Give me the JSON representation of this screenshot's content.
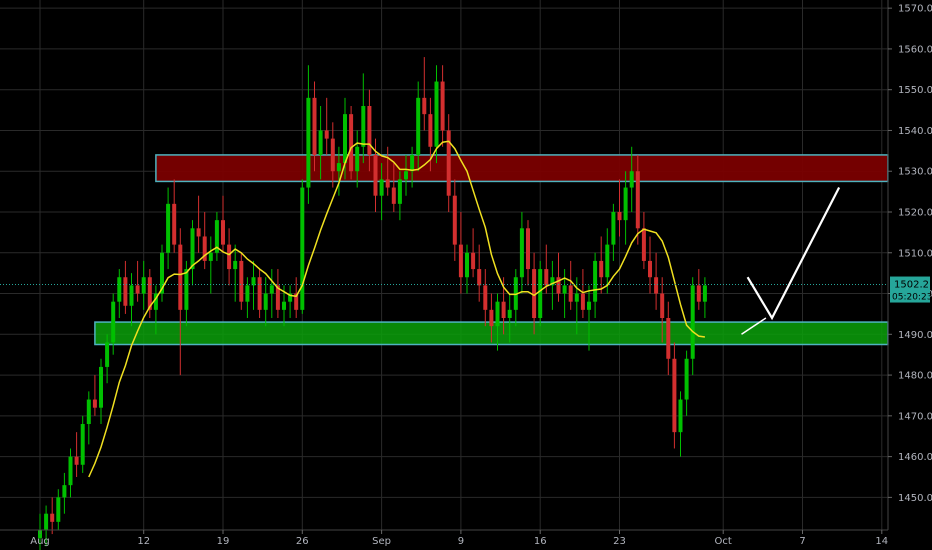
{
  "chart_data": {
    "type": "candlestick",
    "background": "#000000",
    "y_axis": {
      "position": "right",
      "ylim": [
        1442,
        1572
      ],
      "ticks": [
        1450,
        1460,
        1470,
        1480,
        1490,
        1500,
        1510,
        1520,
        1530,
        1540,
        1550,
        1560,
        1570
      ],
      "tick_labels": [
        "1450.00",
        "1460.00",
        "1470.00",
        "1480.00",
        "1490.00",
        "1500.00",
        "1510.00",
        "1520.00",
        "1530.00",
        "1540.00",
        "1550.00",
        "1560.00",
        "1570.00"
      ]
    },
    "x_axis": {
      "tick_labels": [
        "Aug",
        "12",
        "19",
        "26",
        "Sep",
        "9",
        "16",
        "23",
        "Oct",
        "7",
        "14"
      ],
      "tick_bar_index": [
        0,
        17,
        30,
        43,
        56,
        69,
        82,
        95,
        112,
        125,
        138
      ]
    },
    "last_price": {
      "value": "1502.21",
      "countdown": "05:20:23",
      "color": "#26a69a"
    },
    "colors": {
      "up": "#00c000",
      "down": "#d32f2f",
      "ma": "#f0e020",
      "grid": "#2a2a2a",
      "resistance_fill": "#7a0000",
      "support_fill": "#0aa00a",
      "zone_border": "#4fb3bf",
      "projection": "#ffffff"
    },
    "zones": [
      {
        "name": "resistance",
        "y_top": 1534,
        "y_bottom": 1527.5,
        "x_start_bar": 19,
        "x_end_bar": 139
      },
      {
        "name": "support",
        "y_top": 1493,
        "y_bottom": 1487.5,
        "x_start_bar": 9,
        "x_end_bar": 139
      }
    ],
    "projection": [
      {
        "bar": 116,
        "y": 1504
      },
      {
        "bar": 120,
        "y": 1494
      },
      {
        "bar": 131,
        "y": 1526
      }
    ],
    "projection_secondary": [
      {
        "bar": 115,
        "y": 1490
      },
      {
        "bar": 119,
        "y": 1494
      }
    ],
    "ohlc": [
      [
        1440,
        1446,
        1436,
        1442
      ],
      [
        1442,
        1448,
        1438,
        1446
      ],
      [
        1446,
        1450,
        1441,
        1444
      ],
      [
        1444,
        1452,
        1442,
        1450
      ],
      [
        1450,
        1456,
        1446,
        1453
      ],
      [
        1453,
        1462,
        1450,
        1460
      ],
      [
        1460,
        1466,
        1455,
        1458
      ],
      [
        1458,
        1470,
        1456,
        1468
      ],
      [
        1468,
        1476,
        1463,
        1474
      ],
      [
        1474,
        1480,
        1470,
        1472
      ],
      [
        1472,
        1484,
        1468,
        1482
      ],
      [
        1482,
        1490,
        1478,
        1488
      ],
      [
        1488,
        1500,
        1485,
        1498
      ],
      [
        1498,
        1506,
        1494,
        1504
      ],
      [
        1504,
        1508,
        1495,
        1497
      ],
      [
        1497,
        1505,
        1492,
        1502
      ],
      [
        1502,
        1508,
        1498,
        1500
      ],
      [
        1500,
        1508,
        1496,
        1504
      ],
      [
        1504,
        1506,
        1494,
        1496
      ],
      [
        1496,
        1502,
        1490,
        1500
      ],
      [
        1500,
        1512,
        1498,
        1510
      ],
      [
        1510,
        1526,
        1506,
        1522
      ],
      [
        1522,
        1528,
        1510,
        1512
      ],
      [
        1512,
        1516,
        1480,
        1496
      ],
      [
        1496,
        1508,
        1492,
        1506
      ],
      [
        1506,
        1518,
        1502,
        1516
      ],
      [
        1516,
        1524,
        1510,
        1514
      ],
      [
        1514,
        1520,
        1506,
        1508
      ],
      [
        1508,
        1514,
        1500,
        1510
      ],
      [
        1510,
        1520,
        1508,
        1518
      ],
      [
        1518,
        1524,
        1510,
        1512
      ],
      [
        1512,
        1516,
        1502,
        1506
      ],
      [
        1506,
        1512,
        1498,
        1508
      ],
      [
        1508,
        1510,
        1496,
        1498
      ],
      [
        1498,
        1504,
        1494,
        1502
      ],
      [
        1502,
        1508,
        1496,
        1504
      ],
      [
        1504,
        1506,
        1494,
        1496
      ],
      [
        1496,
        1504,
        1492,
        1500
      ],
      [
        1500,
        1506,
        1494,
        1502
      ],
      [
        1502,
        1506,
        1494,
        1496
      ],
      [
        1496,
        1502,
        1492,
        1498
      ],
      [
        1498,
        1502,
        1494,
        1500
      ],
      [
        1500,
        1504,
        1494,
        1496
      ],
      [
        1496,
        1528,
        1495,
        1526
      ],
      [
        1526,
        1556,
        1522,
        1548
      ],
      [
        1548,
        1552,
        1530,
        1534
      ],
      [
        1534,
        1546,
        1528,
        1540
      ],
      [
        1540,
        1548,
        1534,
        1538
      ],
      [
        1538,
        1542,
        1526,
        1530
      ],
      [
        1530,
        1536,
        1524,
        1532
      ],
      [
        1532,
        1548,
        1528,
        1544
      ],
      [
        1544,
        1546,
        1528,
        1530
      ],
      [
        1530,
        1540,
        1526,
        1536
      ],
      [
        1536,
        1554,
        1532,
        1546
      ],
      [
        1546,
        1550,
        1530,
        1534
      ],
      [
        1534,
        1538,
        1520,
        1524
      ],
      [
        1524,
        1532,
        1518,
        1528
      ],
      [
        1528,
        1536,
        1524,
        1526
      ],
      [
        1526,
        1532,
        1520,
        1522
      ],
      [
        1522,
        1530,
        1518,
        1528
      ],
      [
        1528,
        1534,
        1524,
        1530
      ],
      [
        1530,
        1536,
        1526,
        1534
      ],
      [
        1534,
        1552,
        1530,
        1548
      ],
      [
        1548,
        1558,
        1540,
        1544
      ],
      [
        1544,
        1548,
        1530,
        1536
      ],
      [
        1536,
        1556,
        1532,
        1552
      ],
      [
        1552,
        1556,
        1536,
        1540
      ],
      [
        1540,
        1544,
        1520,
        1524
      ],
      [
        1524,
        1528,
        1508,
        1512
      ],
      [
        1512,
        1520,
        1500,
        1504
      ],
      [
        1504,
        1512,
        1500,
        1510
      ],
      [
        1510,
        1516,
        1504,
        1506
      ],
      [
        1506,
        1512,
        1498,
        1502
      ],
      [
        1502,
        1506,
        1492,
        1496
      ],
      [
        1496,
        1500,
        1488,
        1492
      ],
      [
        1492,
        1500,
        1486,
        1498
      ],
      [
        1498,
        1504,
        1490,
        1494
      ],
      [
        1494,
        1500,
        1488,
        1496
      ],
      [
        1496,
        1506,
        1492,
        1504
      ],
      [
        1504,
        1520,
        1500,
        1516
      ],
      [
        1516,
        1518,
        1502,
        1506
      ],
      [
        1506,
        1510,
        1490,
        1494
      ],
      [
        1494,
        1508,
        1492,
        1506
      ],
      [
        1506,
        1512,
        1500,
        1502
      ],
      [
        1502,
        1508,
        1496,
        1504
      ],
      [
        1504,
        1510,
        1498,
        1500
      ],
      [
        1500,
        1506,
        1494,
        1502
      ],
      [
        1502,
        1508,
        1496,
        1498
      ],
      [
        1498,
        1504,
        1490,
        1500
      ],
      [
        1500,
        1506,
        1494,
        1496
      ],
      [
        1496,
        1502,
        1486,
        1498
      ],
      [
        1498,
        1510,
        1494,
        1508
      ],
      [
        1508,
        1514,
        1500,
        1504
      ],
      [
        1504,
        1516,
        1500,
        1512
      ],
      [
        1512,
        1522,
        1508,
        1520
      ],
      [
        1520,
        1528,
        1514,
        1518
      ],
      [
        1518,
        1530,
        1512,
        1526
      ],
      [
        1526,
        1536,
        1520,
        1530
      ],
      [
        1530,
        1534,
        1512,
        1516
      ],
      [
        1516,
        1520,
        1506,
        1508
      ],
      [
        1508,
        1514,
        1500,
        1504
      ],
      [
        1504,
        1510,
        1496,
        1500
      ],
      [
        1500,
        1504,
        1488,
        1494
      ],
      [
        1494,
        1498,
        1480,
        1484
      ],
      [
        1484,
        1488,
        1462,
        1466
      ],
      [
        1466,
        1476,
        1460,
        1474
      ],
      [
        1474,
        1486,
        1470,
        1484
      ],
      [
        1484,
        1504,
        1480,
        1502
      ],
      [
        1502,
        1506,
        1496,
        1498
      ],
      [
        1498,
        1504,
        1494,
        1502
      ]
    ],
    "ma_period": 9
  }
}
